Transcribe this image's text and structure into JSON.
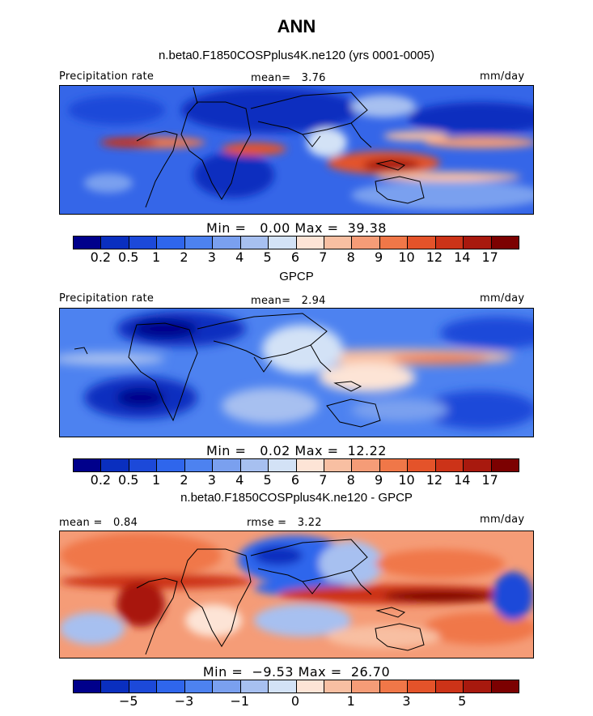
{
  "title": "ANN",
  "subtitle": "n.beta0.F1850COSPplus4K.ne120 (yrs 0001-0005)",
  "colors": {
    "abs": [
      "#00008b",
      "#0a2fbf",
      "#1c49d9",
      "#2f66ec",
      "#4d82f0",
      "#7aa0ef",
      "#a7c0f0",
      "#d3e2f6",
      "#fde4d6",
      "#f8bfa2",
      "#f59c77",
      "#f07748",
      "#e4532a",
      "#cc3318",
      "#a8190e",
      "#7c0101"
    ],
    "diff": [
      "#00008b",
      "#0a2fbf",
      "#1c49d9",
      "#2f66ec",
      "#4d82f0",
      "#7aa0ef",
      "#a7c0f0",
      "#d3e2f6",
      "#fde4d6",
      "#f8bfa2",
      "#f59c77",
      "#f07748",
      "#e4532a",
      "#cc3318",
      "#a8190e",
      "#7c0101"
    ]
  },
  "panels": [
    {
      "header_left": "Precipitation rate",
      "mean_label": "mean=",
      "mean_value": "3.76",
      "units": "mm/day",
      "min_label": "Min =",
      "min_value": "0.00",
      "max_label": "Max =",
      "max_value": "39.38",
      "tick_labels": [
        "0.2",
        "0.5",
        "1",
        "2",
        "3",
        "4",
        "5",
        "6",
        "7",
        "8",
        "9",
        "10",
        "12",
        "14",
        "17"
      ]
    },
    {
      "title": "GPCP",
      "header_left": "Precipitation rate",
      "mean_label": "mean=",
      "mean_value": "2.94",
      "units": "mm/day",
      "min_label": "Min =",
      "min_value": "0.02",
      "max_label": "Max =",
      "max_value": "12.22",
      "tick_labels": [
        "0.2",
        "0.5",
        "1",
        "2",
        "3",
        "4",
        "5",
        "6",
        "7",
        "8",
        "9",
        "10",
        "12",
        "14",
        "17"
      ]
    },
    {
      "title": "n.beta0.F1850COSPplus4K.ne120 - GPCP",
      "mean_label": "mean =",
      "mean_value": "0.84",
      "rmse_label": "rmse =",
      "rmse_value": "3.22",
      "units": "mm/day",
      "min_label": "Min =",
      "min_value": "−9.53",
      "max_label": "Max =",
      "max_value": "26.70",
      "tick_labels": [
        "−5",
        "−3",
        "−1",
        "0",
        "1",
        "3",
        "5"
      ]
    }
  ]
}
